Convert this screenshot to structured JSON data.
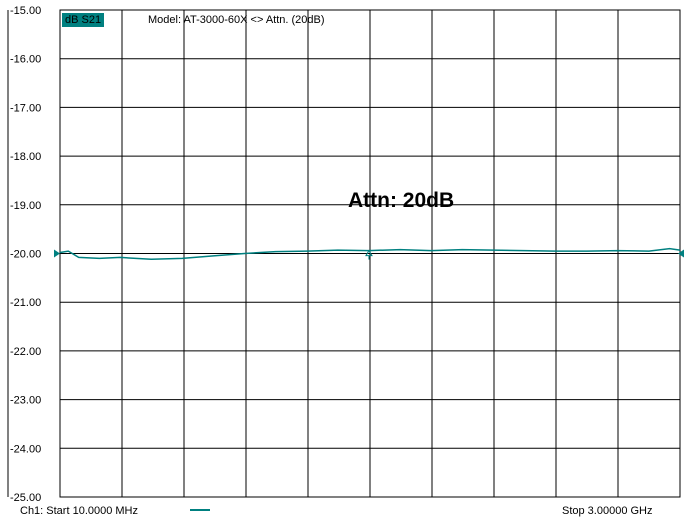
{
  "header": {
    "trace_label": "dB S21",
    "model_text": "Model: AT-3000-60X <> Attn. (20dB)"
  },
  "annotation": "Attn: 20dB",
  "footer": {
    "start_text": "Ch1: Start  10.0000 MHz",
    "stop_text": "Stop  3.00000 GHz"
  },
  "colors": {
    "trace": "#008080",
    "grid": "#000000",
    "background": "#ffffff"
  },
  "chart_data": {
    "type": "line",
    "title": "",
    "xlabel": "",
    "ylabel": "",
    "xlim": [
      0.01,
      3.0
    ],
    "ylim": [
      -25.0,
      -15.0
    ],
    "x_unit": "GHz",
    "y_unit": "dB",
    "grid": true,
    "x_divisions": 10,
    "ytick_labels": [
      "-15.00",
      "-16.00",
      "-17.00",
      "-18.00",
      "-19.00",
      "-20.00",
      "-21.00",
      "-22.00",
      "-23.00",
      "-24.00",
      "-25.00"
    ],
    "reference_level": -20.0,
    "series": [
      {
        "x": [
          0.01,
          0.05,
          0.1,
          0.2,
          0.3,
          0.45,
          0.6,
          0.75,
          0.9,
          1.05,
          1.2,
          1.35,
          1.5,
          1.65,
          1.8,
          1.95,
          2.1,
          2.25,
          2.4,
          2.55,
          2.7,
          2.85,
          2.95,
          3.0
        ],
        "y": [
          -19.98,
          -19.95,
          -20.08,
          -20.1,
          -20.08,
          -20.12,
          -20.1,
          -20.05,
          -20.0,
          -19.96,
          -19.95,
          -19.93,
          -19.94,
          -19.92,
          -19.94,
          -19.92,
          -19.93,
          -19.94,
          -19.95,
          -19.95,
          -19.94,
          -19.95,
          -19.9,
          -19.93
        ]
      }
    ],
    "marker": {
      "x": 1.5,
      "y": -19.94
    }
  }
}
